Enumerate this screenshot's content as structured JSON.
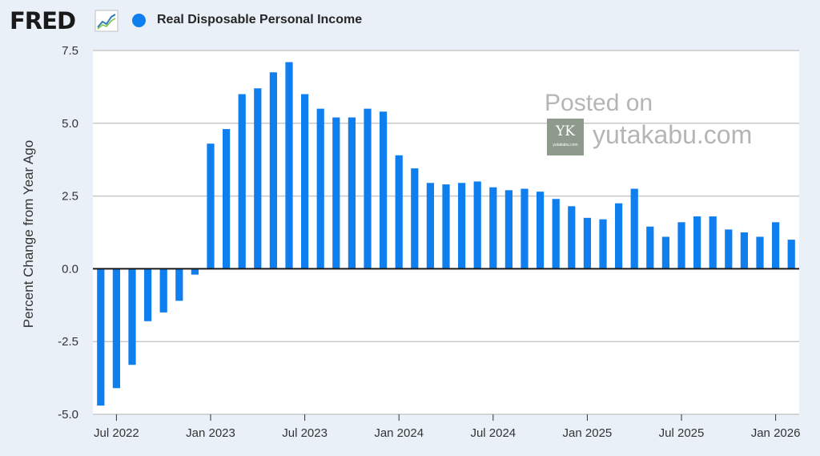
{
  "header": {
    "logo_text": "FRED",
    "logo_icon": "line-graph-icon",
    "legend_label": "Real Disposable Personal Income",
    "series_color": "#0f7ff0"
  },
  "watermark": {
    "line1": "Posted on",
    "site": "yutakabu.com",
    "logo_letters": "YK",
    "logo_small": "yutakabu.com"
  },
  "chart_data": {
    "type": "bar",
    "ylabel": "Percent Change from Year Ago",
    "ylim": [
      -5.0,
      7.5
    ],
    "yticks": [
      -5.0,
      -2.5,
      0.0,
      2.5,
      5.0,
      7.5
    ],
    "ytick_labels": [
      "-5.0",
      "-2.5",
      "0.0",
      "2.5",
      "5.0",
      "7.5"
    ],
    "grid": true,
    "x_start": "2022-06",
    "xtick_labels": [
      {
        "label": "Jul 2022",
        "month": "2022-07"
      },
      {
        "label": "Jan 2023",
        "month": "2023-01"
      },
      {
        "label": "Jul 2023",
        "month": "2023-07"
      },
      {
        "label": "Jan 2024",
        "month": "2024-01"
      },
      {
        "label": "Jul 2024",
        "month": "2024-07"
      },
      {
        "label": "Jan 2025",
        "month": "2025-01"
      },
      {
        "label": "Jul 2025",
        "month": "2025-07"
      },
      {
        "label": "Jan 2026",
        "month": "2026-01"
      }
    ],
    "series": [
      {
        "name": "Real Disposable Personal Income",
        "color": "#0f7ff0",
        "values": [
          -4.7,
          -4.1,
          -3.3,
          -1.8,
          -1.5,
          -1.1,
          -0.2,
          4.3,
          4.8,
          6.0,
          6.2,
          6.75,
          7.1,
          6.0,
          5.5,
          5.2,
          5.2,
          5.5,
          5.4,
          3.9,
          3.45,
          2.95,
          2.9,
          2.95,
          3.0,
          2.8,
          2.7,
          2.75,
          2.65,
          2.4,
          2.15,
          1.75,
          1.7,
          2.25,
          2.75,
          1.45,
          1.1,
          1.6,
          1.8,
          1.8,
          1.35,
          1.25,
          1.1,
          1.6,
          1.0
        ]
      }
    ]
  }
}
